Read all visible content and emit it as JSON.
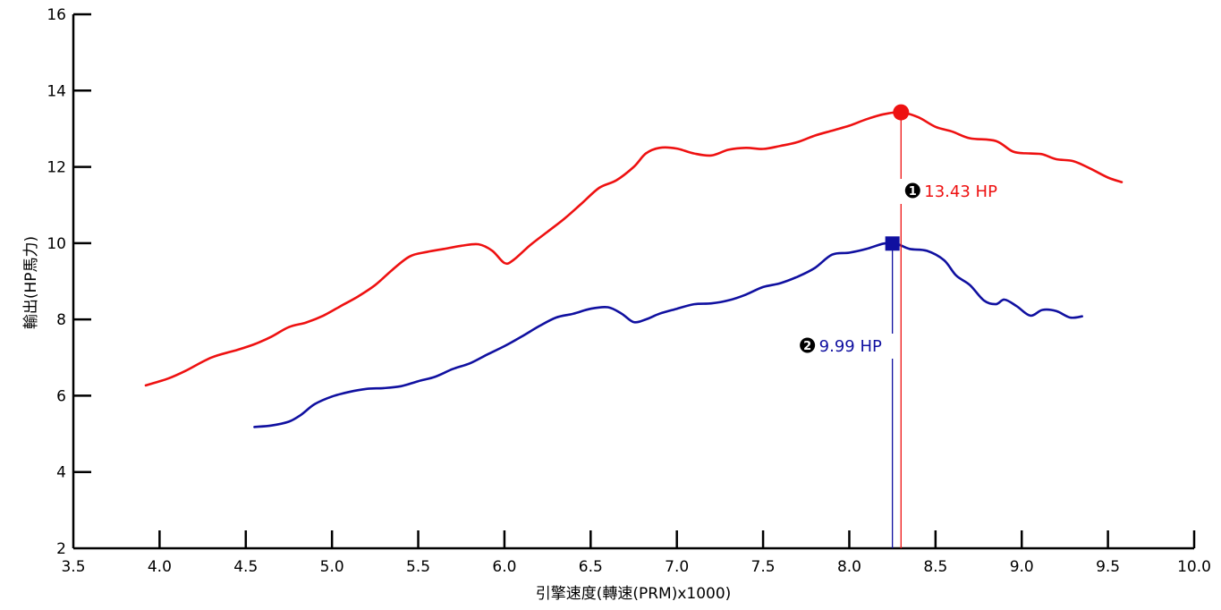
{
  "chart_data": {
    "type": "line",
    "xlabel": "引擎速度(轉速(PRM)x1000)",
    "ylabel": "輸出(HP馬力)",
    "xlim": [
      3.5,
      10.0
    ],
    "ylim": [
      2,
      16
    ],
    "x_ticks": [
      "3.5",
      "4.0",
      "4.5",
      "5.0",
      "5.5",
      "6.0",
      "6.5",
      "7.0",
      "7.5",
      "8.0",
      "8.5",
      "9.0",
      "9.5",
      "10.0"
    ],
    "y_ticks": [
      "2",
      "4",
      "6",
      "8",
      "10",
      "12",
      "14",
      "16"
    ],
    "grid": false,
    "series": [
      {
        "id": "red",
        "color": "#ee1111",
        "points": [
          [
            3.92,
            6.27
          ],
          [
            4.05,
            6.45
          ],
          [
            4.15,
            6.65
          ],
          [
            4.3,
            7.0
          ],
          [
            4.45,
            7.2
          ],
          [
            4.55,
            7.35
          ],
          [
            4.65,
            7.55
          ],
          [
            4.75,
            7.8
          ],
          [
            4.85,
            7.92
          ],
          [
            4.95,
            8.1
          ],
          [
            5.05,
            8.35
          ],
          [
            5.15,
            8.6
          ],
          [
            5.25,
            8.9
          ],
          [
            5.35,
            9.3
          ],
          [
            5.45,
            9.65
          ],
          [
            5.55,
            9.77
          ],
          [
            5.65,
            9.85
          ],
          [
            5.75,
            9.93
          ],
          [
            5.85,
            9.97
          ],
          [
            5.93,
            9.8
          ],
          [
            6.0,
            9.48
          ],
          [
            6.05,
            9.55
          ],
          [
            6.15,
            9.95
          ],
          [
            6.25,
            10.3
          ],
          [
            6.35,
            10.65
          ],
          [
            6.45,
            11.05
          ],
          [
            6.55,
            11.45
          ],
          [
            6.65,
            11.65
          ],
          [
            6.75,
            12.0
          ],
          [
            6.82,
            12.35
          ],
          [
            6.9,
            12.5
          ],
          [
            7.0,
            12.48
          ],
          [
            7.1,
            12.35
          ],
          [
            7.2,
            12.3
          ],
          [
            7.3,
            12.45
          ],
          [
            7.4,
            12.5
          ],
          [
            7.5,
            12.47
          ],
          [
            7.6,
            12.55
          ],
          [
            7.7,
            12.65
          ],
          [
            7.8,
            12.82
          ],
          [
            7.9,
            12.95
          ],
          [
            8.0,
            13.08
          ],
          [
            8.1,
            13.25
          ],
          [
            8.2,
            13.38
          ],
          [
            8.3,
            13.43
          ],
          [
            8.4,
            13.3
          ],
          [
            8.5,
            13.05
          ],
          [
            8.6,
            12.92
          ],
          [
            8.7,
            12.75
          ],
          [
            8.85,
            12.68
          ],
          [
            8.95,
            12.4
          ],
          [
            9.05,
            12.35
          ],
          [
            9.12,
            12.33
          ],
          [
            9.2,
            12.2
          ],
          [
            9.3,
            12.15
          ],
          [
            9.4,
            11.95
          ],
          [
            9.5,
            11.72
          ],
          [
            9.58,
            11.6
          ]
        ]
      },
      {
        "id": "blue",
        "color": "#1010a0",
        "points": [
          [
            4.55,
            5.18
          ],
          [
            4.65,
            5.22
          ],
          [
            4.75,
            5.32
          ],
          [
            4.82,
            5.5
          ],
          [
            4.9,
            5.78
          ],
          [
            5.0,
            5.98
          ],
          [
            5.1,
            6.1
          ],
          [
            5.2,
            6.18
          ],
          [
            5.3,
            6.2
          ],
          [
            5.4,
            6.25
          ],
          [
            5.5,
            6.38
          ],
          [
            5.6,
            6.5
          ],
          [
            5.7,
            6.7
          ],
          [
            5.8,
            6.85
          ],
          [
            5.9,
            7.08
          ],
          [
            6.0,
            7.3
          ],
          [
            6.1,
            7.55
          ],
          [
            6.2,
            7.82
          ],
          [
            6.3,
            8.05
          ],
          [
            6.4,
            8.15
          ],
          [
            6.5,
            8.28
          ],
          [
            6.6,
            8.32
          ],
          [
            6.68,
            8.15
          ],
          [
            6.75,
            7.93
          ],
          [
            6.82,
            8.0
          ],
          [
            6.9,
            8.15
          ],
          [
            7.0,
            8.28
          ],
          [
            7.1,
            8.4
          ],
          [
            7.2,
            8.42
          ],
          [
            7.3,
            8.5
          ],
          [
            7.4,
            8.65
          ],
          [
            7.5,
            8.85
          ],
          [
            7.6,
            8.95
          ],
          [
            7.7,
            9.12
          ],
          [
            7.8,
            9.35
          ],
          [
            7.9,
            9.7
          ],
          [
            8.0,
            9.75
          ],
          [
            8.1,
            9.85
          ],
          [
            8.2,
            9.99
          ],
          [
            8.27,
            9.99
          ],
          [
            8.35,
            9.85
          ],
          [
            8.45,
            9.8
          ],
          [
            8.55,
            9.55
          ],
          [
            8.62,
            9.15
          ],
          [
            8.7,
            8.9
          ],
          [
            8.78,
            8.5
          ],
          [
            8.85,
            8.4
          ],
          [
            8.9,
            8.52
          ],
          [
            8.97,
            8.35
          ],
          [
            9.05,
            8.1
          ],
          [
            9.12,
            8.25
          ],
          [
            9.2,
            8.22
          ],
          [
            9.28,
            8.05
          ],
          [
            9.35,
            8.08
          ]
        ]
      }
    ],
    "annotations": [
      {
        "series": "red",
        "x": 8.3,
        "y": 13.43,
        "marker": "circle",
        "badge": "1",
        "label": "13.43 HP"
      },
      {
        "series": "blue",
        "x": 8.25,
        "y": 9.99,
        "marker": "square",
        "badge": "2",
        "label": "9.99 HP"
      }
    ]
  }
}
